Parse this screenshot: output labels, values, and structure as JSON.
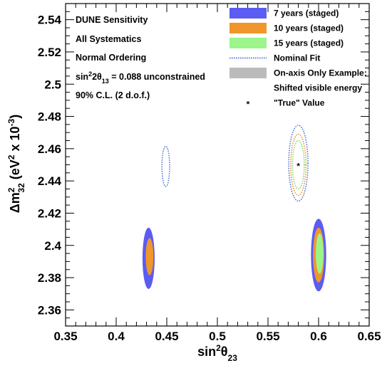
{
  "chart_data": {
    "type": "scatter",
    "title": "",
    "xlabel": {
      "base": "sin",
      "sup": "2",
      "greek": "θ",
      "sub": "23"
    },
    "ylabel": {
      "delta": "Δm",
      "sup": "2",
      "sub": "32",
      "units_open": " (eV",
      "units_sup": "2",
      "units_mid": " x 10",
      "units_exp": "-3",
      "units_close": ")"
    },
    "xlim": [
      0.35,
      0.65
    ],
    "ylim": [
      2.35,
      2.55
    ],
    "x_ticks": [
      "0.35",
      "0.4",
      "0.45",
      "0.5",
      "0.55",
      "0.6",
      "0.65"
    ],
    "y_ticks": [
      "2.36",
      "2.38",
      "2.4",
      "2.42",
      "2.44",
      "2.46",
      "2.48",
      "2.5",
      "2.52",
      "2.54"
    ],
    "x_tick_values": [
      0.35,
      0.4,
      0.45,
      0.5,
      0.55,
      0.6,
      0.65
    ],
    "y_tick_values": [
      2.36,
      2.38,
      2.4,
      2.42,
      2.44,
      2.46,
      2.48,
      2.5,
      2.52,
      2.54
    ],
    "annotations": {
      "line1": "DUNE Sensitivity",
      "line2": "All Systematics",
      "line3": "Normal Ordering",
      "line4": {
        "base": "sin",
        "sup": "2",
        "mid": "2θ",
        "sub": "13",
        "rest": " = 0.088 unconstrained"
      },
      "line5": "90% C.L. (2 d.o.f.)"
    },
    "legend": {
      "position": "top-right",
      "entries": [
        {
          "label": "7 years (staged)",
          "color": "#5b5cf3",
          "style": "filled"
        },
        {
          "label": "10 years (staged)",
          "color": "#f0962a",
          "style": "filled"
        },
        {
          "label": "15 years (staged)",
          "color": "#9cf58a",
          "style": "filled"
        },
        {
          "label": "Nominal Fit",
          "color": "#5a7ad8",
          "style": "dotted"
        },
        {
          "label": "On-axis Only Example:",
          "color": "#bbbbbb",
          "style": "filled"
        },
        {
          "label": "Shifted visible energy",
          "color": "",
          "style": "none"
        },
        {
          "label": "\"True\" Value",
          "color": "#000000",
          "style": "marker"
        }
      ]
    },
    "true_value": {
      "x": 0.58,
      "y": 2.45
    },
    "series": [
      {
        "name": "7 years (staged)",
        "kind": "filled",
        "color": "#5b5cf3",
        "ellipses": [
          {
            "cx": 0.432,
            "cy": 2.392,
            "rx": 0.006,
            "ry": 0.019
          },
          {
            "cx": 0.6,
            "cy": 2.394,
            "rx": 0.0075,
            "ry": 0.0225
          }
        ]
      },
      {
        "name": "10 years (staged)",
        "kind": "filled",
        "color": "#f0962a",
        "ellipses": [
          {
            "cx": 0.433,
            "cy": 2.393,
            "rx": 0.0038,
            "ry": 0.0115
          },
          {
            "cx": 0.6,
            "cy": 2.394,
            "rx": 0.0055,
            "ry": 0.017
          }
        ]
      },
      {
        "name": "15 years (staged)",
        "kind": "filled",
        "color": "#9cf58a",
        "ellipses": [
          {
            "cx": 0.601,
            "cy": 2.395,
            "rx": 0.0038,
            "ry": 0.0125
          }
        ]
      },
      {
        "name": "Nominal Fit",
        "kind": "dotted",
        "colors": [
          "#5a7ad8",
          "#e89a3a",
          "#8ed86a"
        ],
        "ellipses": [
          {
            "cx": 0.449,
            "cy": 2.449,
            "rx": 0.0038,
            "ry": 0.0125,
            "color": "#5a7ad8"
          },
          {
            "cx": 0.58,
            "cy": 2.451,
            "rx": 0.0095,
            "ry": 0.0235,
            "color": "#5a7ad8"
          },
          {
            "cx": 0.58,
            "cy": 2.45,
            "rx": 0.0075,
            "ry": 0.019,
            "color": "#e89a3a"
          },
          {
            "cx": 0.58,
            "cy": 2.45,
            "rx": 0.0058,
            "ry": 0.015,
            "color": "#8ed86a"
          }
        ]
      }
    ]
  }
}
